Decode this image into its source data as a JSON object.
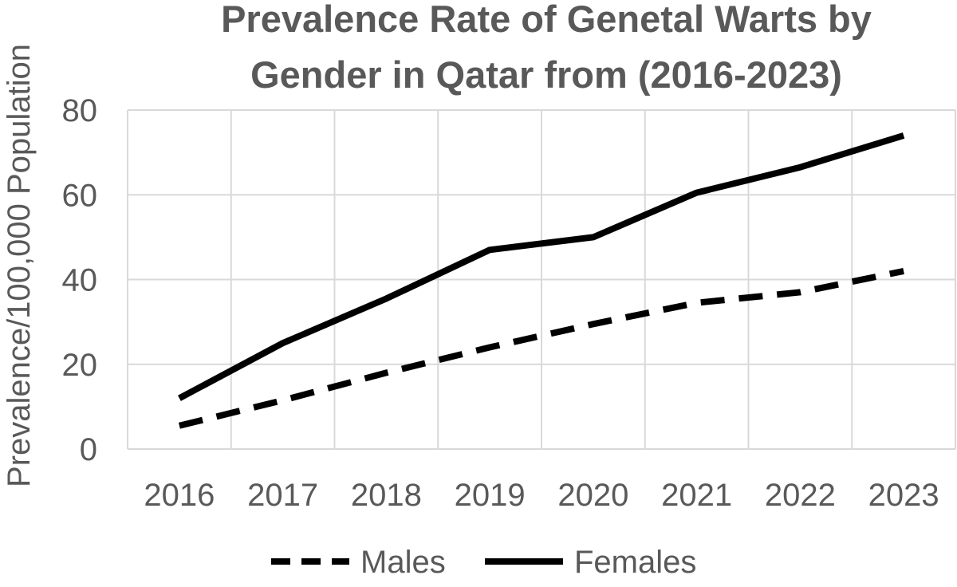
{
  "chart_data": {
    "type": "line",
    "title_lines": [
      "Prevalence Rate of Genetal Warts by",
      "Gender in Qatar from (2016-2023)"
    ],
    "xlabel": "",
    "ylabel": "Prevalence/100,000 Population",
    "categories": [
      "2016",
      "2017",
      "2018",
      "2019",
      "2020",
      "2021",
      "2022",
      "2023"
    ],
    "ylim": [
      0,
      80
    ],
    "yticks": [
      0,
      20,
      40,
      60,
      80
    ],
    "grid": true,
    "legend_position": "bottom",
    "series": [
      {
        "name": "Males",
        "line_style": "dashed",
        "color": "#000000",
        "values": [
          5.5,
          11.5,
          18,
          24,
          29.5,
          34.5,
          37,
          42
        ]
      },
      {
        "name": "Females",
        "line_style": "solid",
        "color": "#000000",
        "values": [
          12,
          25,
          35.5,
          47,
          50,
          60.5,
          66.5,
          74
        ]
      }
    ]
  }
}
